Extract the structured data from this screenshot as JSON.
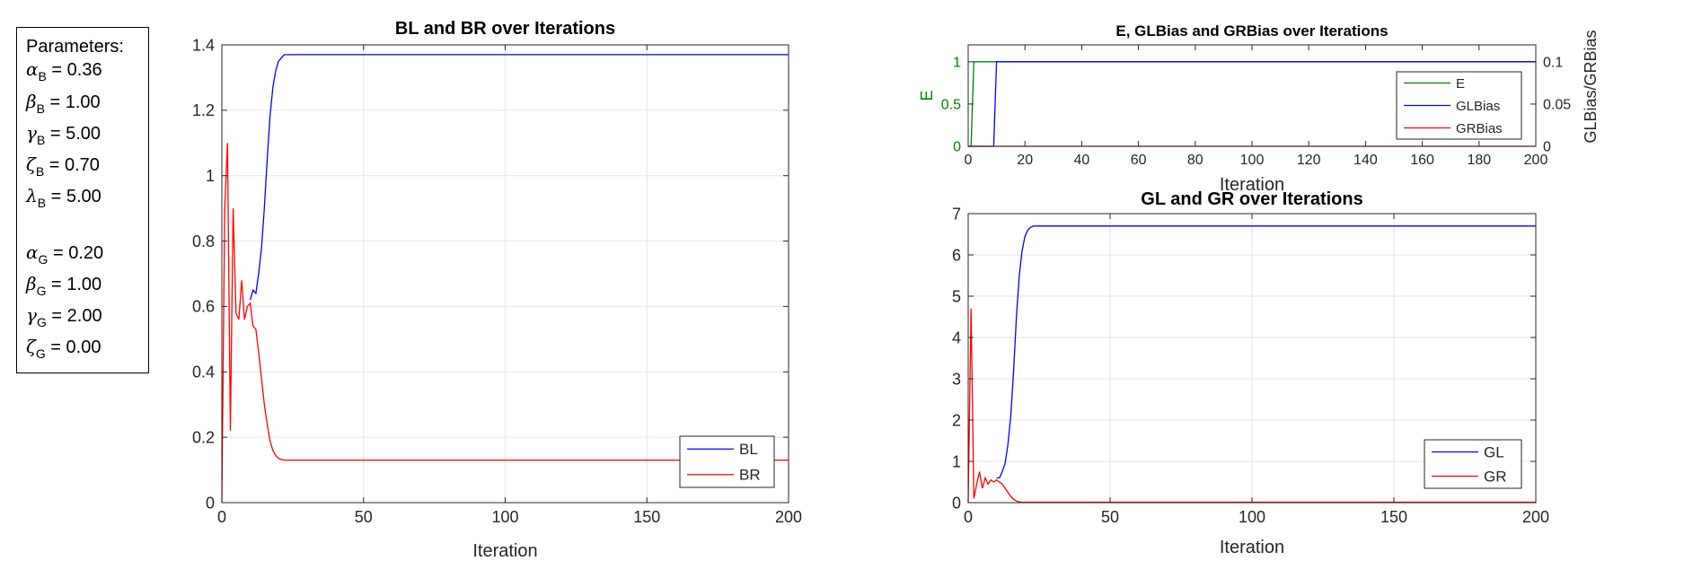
{
  "parameters": {
    "title": "Parameters:",
    "items": [
      {
        "symbol": "α",
        "sub": "B",
        "text": " = 0.36"
      },
      {
        "symbol": "β",
        "sub": "B",
        "text": " = 1.00"
      },
      {
        "symbol": "γ",
        "sub": "B",
        "text": " = 5.00"
      },
      {
        "symbol": "ζ",
        "sub": "B",
        "text": " = 0.70"
      },
      {
        "symbol": "λ",
        "sub": "B",
        "text": " = 5.00"
      },
      {
        "symbol": "α",
        "sub": "G",
        "text": " = 0.20"
      },
      {
        "symbol": "β",
        "sub": "G",
        "text": " = 1.00"
      },
      {
        "symbol": "γ",
        "sub": "G",
        "text": " = 2.00"
      },
      {
        "symbol": "ζ",
        "sub": "G",
        "text": " = 0.00"
      }
    ]
  },
  "colors": {
    "blue": "#0000ff",
    "red": "#ff0000",
    "green": "#008000",
    "axis": "#262626",
    "grid": "#e6e6e6"
  },
  "chart_data": [
    {
      "id": "bl-br",
      "type": "line",
      "title": "BL and BR over Iterations",
      "xlabel": "Iteration",
      "ylabel": "",
      "xlim": [
        0,
        200
      ],
      "ylim": [
        0,
        1.4
      ],
      "xticks": [
        0,
        50,
        100,
        150,
        200
      ],
      "yticks": [
        0,
        0.2,
        0.4,
        0.6,
        0.8,
        1,
        1.2,
        1.4
      ],
      "grid": true,
      "legend": "bottom-right",
      "series": [
        {
          "name": "BL",
          "color": "#0000ff",
          "x": [
            10,
            11,
            12,
            13,
            14,
            15,
            16,
            17,
            18,
            19,
            20,
            21,
            22,
            23,
            25,
            200
          ],
          "y": [
            0.62,
            0.65,
            0.64,
            0.7,
            0.78,
            0.9,
            1.05,
            1.18,
            1.27,
            1.32,
            1.35,
            1.36,
            1.37,
            1.37,
            1.37,
            1.37
          ]
        },
        {
          "name": "BR",
          "color": "#ff0000",
          "x": [
            0,
            1,
            2,
            3,
            4,
            5,
            6,
            7,
            8,
            9,
            10,
            11,
            12,
            13,
            14,
            15,
            16,
            17,
            18,
            19,
            20,
            21,
            22,
            24,
            26,
            200
          ],
          "y": [
            0,
            0.9,
            1.1,
            0.22,
            0.9,
            0.58,
            0.56,
            0.68,
            0.56,
            0.6,
            0.61,
            0.54,
            0.53,
            0.46,
            0.38,
            0.3,
            0.24,
            0.19,
            0.16,
            0.145,
            0.135,
            0.132,
            0.13,
            0.13,
            0.13,
            0.13
          ]
        }
      ]
    },
    {
      "id": "e-bias",
      "type": "line",
      "title": "E, GLBias and GRBias over Iterations",
      "xlabel": "Iteration",
      "ylabel": "E",
      "ylabel_right": "GLBias/GRBias",
      "xlim": [
        0,
        200
      ],
      "ylim": [
        0,
        1.2
      ],
      "ylim_right": [
        0,
        0.12
      ],
      "xticks": [
        0,
        20,
        40,
        60,
        80,
        100,
        120,
        140,
        160,
        180,
        200
      ],
      "yticks": [
        0,
        0.5,
        1
      ],
      "yticks_right": [
        0,
        0.05,
        0.1
      ],
      "grid": false,
      "legend": "top-right",
      "series": [
        {
          "name": "E",
          "color": "#008000",
          "axis": "left",
          "x": [
            0,
            1,
            2,
            200
          ],
          "y": [
            0,
            0,
            1,
            1
          ]
        },
        {
          "name": "GLBias",
          "color": "#0000ff",
          "axis": "right",
          "x": [
            0,
            9,
            10,
            200
          ],
          "y": [
            0,
            0,
            0.1,
            0.1
          ]
        },
        {
          "name": "GRBias",
          "color": "#ff0000",
          "axis": "right",
          "x": [
            0,
            200
          ],
          "y": [
            0,
            0
          ]
        }
      ]
    },
    {
      "id": "gl-gr",
      "type": "line",
      "title": "GL and GR over Iterations",
      "xlabel": "Iteration",
      "ylabel": "",
      "xlim": [
        0,
        200
      ],
      "ylim": [
        0,
        7
      ],
      "xticks": [
        0,
        50,
        100,
        150,
        200
      ],
      "yticks": [
        0,
        1,
        2,
        3,
        4,
        5,
        6,
        7
      ],
      "grid": true,
      "legend": "bottom-right",
      "series": [
        {
          "name": "GL",
          "color": "#0000ff",
          "x": [
            10,
            11,
            12,
            13,
            14,
            15,
            16,
            17,
            18,
            19,
            20,
            21,
            22,
            23,
            24,
            200
          ],
          "y": [
            0.6,
            0.6,
            0.75,
            0.95,
            1.4,
            2.1,
            3.2,
            4.5,
            5.5,
            6.1,
            6.45,
            6.6,
            6.67,
            6.7,
            6.7,
            6.7
          ]
        },
        {
          "name": "GR",
          "color": "#ff0000",
          "x": [
            0,
            1,
            2,
            3,
            4,
            5,
            6,
            7,
            8,
            9,
            10,
            11,
            12,
            13,
            14,
            15,
            16,
            17,
            18,
            19,
            20,
            200
          ],
          "y": [
            0,
            4.7,
            0.1,
            0.45,
            0.75,
            0.35,
            0.6,
            0.45,
            0.55,
            0.5,
            0.55,
            0.5,
            0.45,
            0.35,
            0.25,
            0.15,
            0.08,
            0.04,
            0.02,
            0.01,
            0.01,
            0.01
          ]
        }
      ]
    }
  ]
}
